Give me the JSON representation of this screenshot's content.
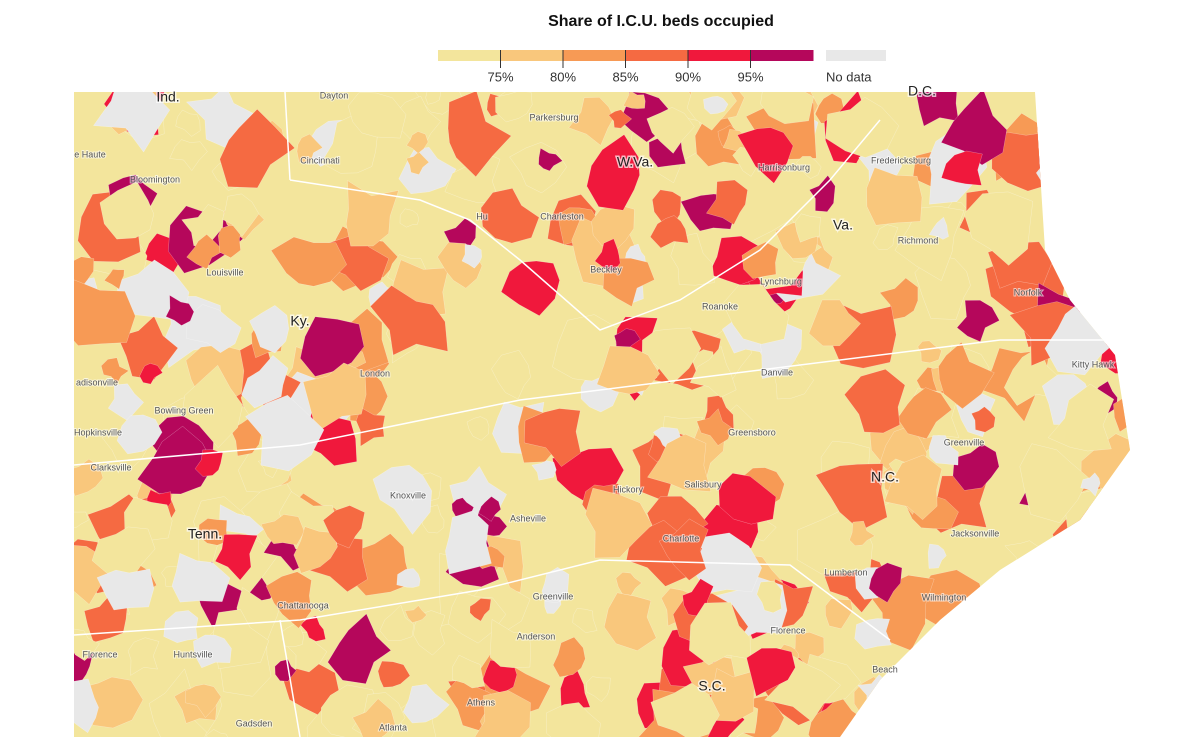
{
  "legend": {
    "title": "Share of I.C.U. beds occupied",
    "range": [
      70,
      100
    ],
    "colors": [
      "#f3e59c",
      "#f9c77c",
      "#f79a55",
      "#f56a42",
      "#f0183c",
      "#b5075b"
    ],
    "ticks": [
      {
        "value": 75,
        "label": "75%"
      },
      {
        "value": 80,
        "label": "80%"
      },
      {
        "value": 85,
        "label": "85%"
      },
      {
        "value": 90,
        "label": "90%"
      },
      {
        "value": 95,
        "label": "95%"
      }
    ],
    "no_data": {
      "label": "No data",
      "color": "#e8e8e8"
    }
  },
  "states": [
    "Ind.",
    "W.Va.",
    "Va.",
    "Ky.",
    "N.C.",
    "Tenn.",
    "S.C.",
    "D.C."
  ],
  "cities": [
    "Dayton",
    "Cincinnati",
    "e Haute",
    "Bloomington",
    "Parkersburg",
    "Harrisonburg",
    "Fredericksburg",
    "Charleston",
    "Hu",
    "Louisville",
    "Richmond",
    "Beckley",
    "Lynchburg",
    "Roanoke",
    "Norfolk",
    "Kitty Hawk",
    "adisonville",
    "London",
    "Danville",
    "Bowling Green",
    "Hopkinsville",
    "Clarksville",
    "Greensboro",
    "Knoxville",
    "Hickory",
    "Salisbury",
    "Greenville",
    "Asheville",
    "Charlotte",
    "Jacksonville",
    "Lumberton",
    "Wilmington",
    "Greenville",
    "Chattanooga",
    "Anderson",
    "Florence",
    "Huntsville",
    "Florence",
    "Beach",
    "Athens",
    "Gadsden",
    "Atlanta"
  ]
}
